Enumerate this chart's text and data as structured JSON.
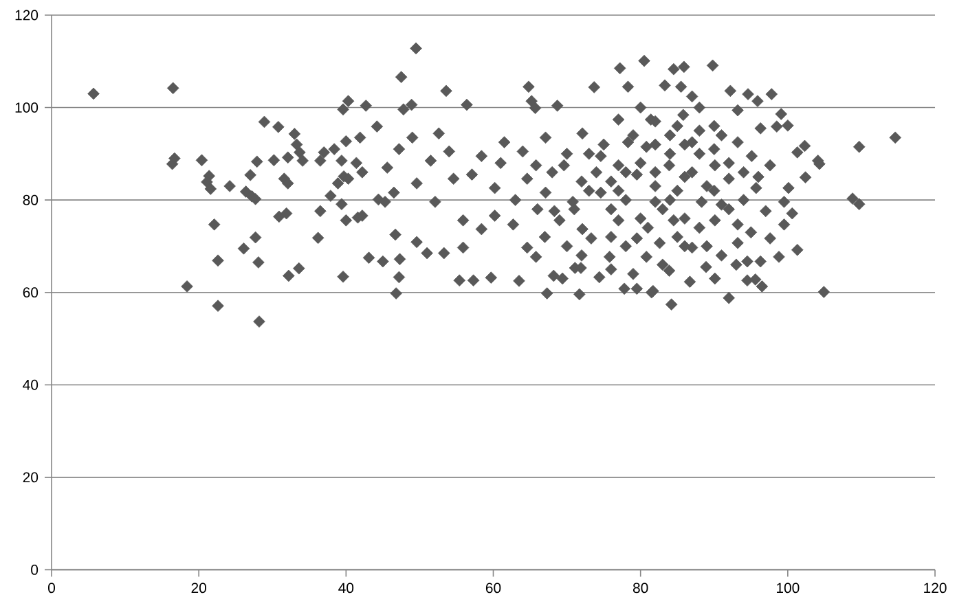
{
  "chart_data": {
    "type": "scatter",
    "marker": "diamond",
    "color": "#595959",
    "grid": "y",
    "xlim": [
      0,
      120
    ],
    "ylim": [
      0,
      120
    ],
    "xticks": [
      0,
      20,
      40,
      60,
      80,
      100,
      120
    ],
    "yticks": [
      0,
      20,
      40,
      60,
      80,
      100,
      120
    ],
    "x": [
      5.7,
      16.5,
      16.4,
      16.7,
      18.4,
      20.4,
      21.4,
      21.1,
      21.6,
      24.2,
      22.1,
      22.6,
      22.6,
      28.2,
      28.9,
      30.8,
      33.0,
      33.3,
      33.7,
      34.1,
      27.9,
      30.2,
      32.1,
      27.0,
      31.6,
      32.1,
      26.4,
      27.2,
      27.7,
      30.9,
      31.9,
      26.1,
      27.7,
      28.1,
      32.2,
      33.6,
      36.2,
      36.5,
      37.9,
      39.4,
      40.0,
      39.6,
      40.3,
      39.6,
      36.5,
      37.0,
      38.4,
      39.4,
      40.0,
      38.9,
      39.7,
      49.5,
      47.5,
      53.6,
      42.7,
      47.8,
      48.9,
      56.4,
      64.8,
      65.2,
      65.7,
      68.7,
      73.7,
      77.2,
      80.5,
      78.3,
      44.2,
      49.0,
      52.6,
      41.9,
      47.2,
      41.4,
      42.2,
      45.6,
      40.3,
      44.4,
      45.3,
      46.5,
      41.6,
      42.2,
      46.7,
      43.1,
      45.0,
      47.3,
      47.2,
      46.8,
      49.6,
      51.0,
      53.3,
      55.4,
      57.3,
      59.7,
      63.5,
      67.3,
      68.2,
      69.4,
      71.7,
      71.1,
      71.9,
      74.4,
      77.8,
      79.5,
      81.5,
      54.6,
      58.4,
      61.5,
      60.2,
      55.9,
      64.6,
      65.8,
      62.7,
      67.1,
      69.0,
      69.6,
      72.1,
      74.6,
      77.0,
      79.5,
      77.0,
      79.5,
      73.3,
      70.8,
      52.1,
      49.6,
      51.5,
      54.0,
      55.9,
      58.4,
      60.2,
      57.1,
      64.6,
      64.0,
      65.8,
      67.1,
      68.3,
      72.1,
      74.6,
      77.0,
      78.3,
      80.8,
      82.0,
      80.8,
      75.8,
      89.8,
      84.5,
      85.9,
      83.3,
      85.5,
      92.2,
      94.6,
      97.8,
      95.9,
      99.1,
      100.0,
      98.5,
      102.3,
      101.3,
      104.1,
      104.3,
      102.4,
      114.6,
      109.7,
      108.8,
      109.7,
      104.9,
      92.0,
      84.2,
      81.7,
      94.5,
      95.6,
      96.5,
      88.9,
      90.1,
      86.7,
      101.3,
      98.8,
      96.3,
      100.6,
      99.5,
      99.5,
      100.1,
      95.1,
      97.6,
      95.7,
      96.3,
      93.2,
      87.0,
      83.9,
      87.0,
      90.1,
      88.3,
      84.5,
      90.1,
      93.2,
      87.0,
      82.6,
      93.2,
      92.0,
      93.2,
      81.4,
      85.8,
      97.0,
      97.6,
      94.5,
      83.9,
      76,
      78,
      80,
      82,
      84,
      86,
      88,
      90,
      92,
      94,
      86,
      80,
      76,
      74,
      82,
      88,
      84,
      90,
      78,
      85,
      91,
      72,
      70,
      83,
      71,
      73,
      75,
      76,
      78,
      79,
      81,
      82,
      83,
      84,
      85,
      86,
      87,
      88,
      89,
      90,
      91,
      92,
      93,
      94,
      95,
      96,
      85,
      80,
      88,
      76,
      79,
      89,
      72,
      70,
      67,
      66,
      63,
      61,
      68,
      73,
      82,
      77,
      86,
      91
    ],
    "values": [
      103.0,
      104.2,
      87.8,
      89.0,
      61.3,
      88.6,
      85.2,
      83.9,
      82.4,
      83.0,
      74.7,
      66.9,
      57.1,
      53.7,
      96.9,
      95.8,
      94.3,
      92.0,
      90.3,
      88.5,
      88.3,
      88.6,
      89.2,
      85.4,
      84.6,
      83.6,
      81.8,
      80.8,
      80.2,
      76.4,
      77.1,
      69.5,
      71.9,
      66.5,
      63.6,
      65.2,
      71.8,
      77.6,
      80.9,
      79.1,
      75.6,
      63.4,
      101.4,
      99.6,
      88.5,
      90.3,
      91.0,
      88.5,
      92.7,
      83.6,
      85.1,
      112.8,
      106.6,
      103.6,
      100.4,
      99.6,
      100.6,
      100.6,
      104.5,
      101.4,
      99.9,
      100.4,
      104.4,
      108.5,
      110.1,
      104.5,
      95.9,
      93.5,
      94.4,
      93.5,
      91.0,
      88.0,
      86.0,
      87.0,
      84.6,
      80.1,
      79.6,
      81.6,
      76.2,
      76.6,
      72.5,
      67.5,
      66.7,
      67.2,
      63.3,
      59.8,
      70.9,
      68.5,
      68.5,
      62.6,
      62.6,
      63.2,
      62.5,
      59.8,
      63.6,
      63.0,
      59.6,
      65.3,
      65.3,
      63.3,
      60.8,
      60.8,
      60.0,
      84.6,
      89.5,
      92.5,
      76.6,
      69.7,
      69.7,
      67.7,
      74.7,
      81.6,
      75.6,
      87.5,
      94.4,
      89.5,
      97.4,
      85.5,
      75.6,
      71.7,
      71.7,
      79.6,
      79.6,
      83.6,
      88.5,
      90.5,
      75.6,
      73.7,
      82.6,
      85.5,
      84.6,
      90.5,
      87.5,
      93.5,
      77.6,
      73.7,
      81.6,
      87.5,
      92.5,
      91.5,
      79.6,
      67.7,
      67.7,
      109.1,
      108.3,
      108.8,
      104.8,
      104.5,
      103.6,
      102.9,
      102.9,
      101.4,
      98.6,
      96.1,
      95.9,
      91.7,
      90.3,
      88.5,
      87.8,
      84.9,
      93.5,
      91.5,
      80.3,
      79.1,
      60.1,
      58.8,
      57.4,
      60.3,
      62.6,
      62.8,
      61.3,
      65.5,
      63.0,
      62.3,
      69.2,
      67.7,
      66.7,
      77.1,
      74.7,
      79.6,
      82.6,
      89.5,
      87.5,
      82.6,
      95.5,
      99.4,
      102.4,
      87.5,
      92.5,
      87.5,
      79.6,
      75.6,
      75.6,
      74.7,
      69.7,
      70.7,
      70.7,
      84.6,
      92.5,
      97.4,
      98.4,
      77.6,
      71.7,
      66.7,
      64.7,
      84,
      80,
      88,
      83,
      80,
      85,
      90,
      82,
      78,
      86,
      76,
      76,
      78,
      86,
      92,
      95,
      94,
      96,
      70,
      72,
      68,
      84,
      90,
      66,
      78,
      82,
      92,
      72,
      86,
      94,
      74,
      86,
      78,
      90,
      82,
      70,
      86,
      74,
      83,
      91,
      79,
      88,
      66,
      80,
      73,
      85,
      96,
      100,
      100,
      65,
      64,
      70,
      68,
      70,
      72,
      78,
      80,
      88,
      86,
      90,
      97,
      82,
      92,
      94
    ]
  }
}
